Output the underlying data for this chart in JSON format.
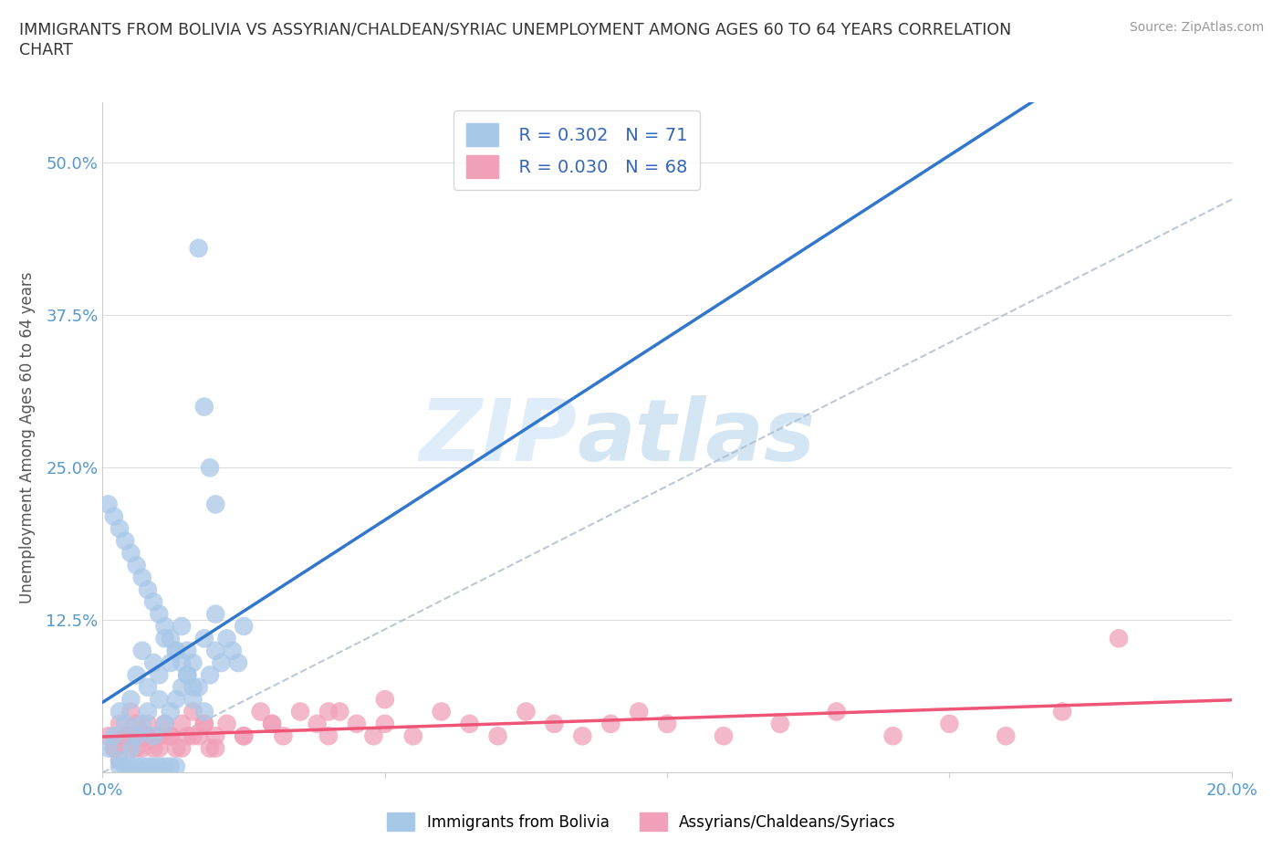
{
  "title": "IMMIGRANTS FROM BOLIVIA VS ASSYRIAN/CHALDEAN/SYRIAC UNEMPLOYMENT AMONG AGES 60 TO 64 YEARS CORRELATION\nCHART",
  "source": "Source: ZipAtlas.com",
  "ylabel": "Unemployment Among Ages 60 to 64 years",
  "xlim": [
    0.0,
    0.2
  ],
  "ylim": [
    0.0,
    0.55
  ],
  "bolivia_color": "#a8c8e8",
  "assyrian_color": "#f0a0b8",
  "bolivia_R": 0.302,
  "bolivia_N": 71,
  "assyrian_R": 0.03,
  "assyrian_N": 68,
  "watermark_zip": "ZIP",
  "watermark_atlas": "atlas",
  "legend_label_1": "Immigrants from Bolivia",
  "legend_label_2": "Assyrians/Chaldeans/Syriacs",
  "bolivia_scatter_x": [
    0.001,
    0.002,
    0.003,
    0.003,
    0.004,
    0.005,
    0.005,
    0.006,
    0.006,
    0.007,
    0.007,
    0.008,
    0.008,
    0.009,
    0.009,
    0.01,
    0.01,
    0.011,
    0.011,
    0.012,
    0.012,
    0.013,
    0.013,
    0.014,
    0.014,
    0.015,
    0.015,
    0.016,
    0.016,
    0.017,
    0.018,
    0.018,
    0.019,
    0.02,
    0.02,
    0.021,
    0.022,
    0.023,
    0.024,
    0.025,
    0.001,
    0.002,
    0.003,
    0.004,
    0.005,
    0.006,
    0.007,
    0.008,
    0.009,
    0.01,
    0.011,
    0.012,
    0.013,
    0.014,
    0.015,
    0.016,
    0.017,
    0.018,
    0.019,
    0.02,
    0.003,
    0.004,
    0.005,
    0.006,
    0.007,
    0.008,
    0.009,
    0.01,
    0.011,
    0.012,
    0.013
  ],
  "bolivia_scatter_y": [
    0.02,
    0.03,
    0.01,
    0.05,
    0.04,
    0.02,
    0.06,
    0.03,
    0.08,
    0.04,
    0.1,
    0.05,
    0.07,
    0.03,
    0.09,
    0.06,
    0.08,
    0.04,
    0.11,
    0.05,
    0.09,
    0.06,
    0.1,
    0.07,
    0.12,
    0.08,
    0.1,
    0.06,
    0.09,
    0.07,
    0.05,
    0.11,
    0.08,
    0.1,
    0.13,
    0.09,
    0.11,
    0.1,
    0.09,
    0.12,
    0.22,
    0.21,
    0.2,
    0.19,
    0.18,
    0.17,
    0.16,
    0.15,
    0.14,
    0.13,
    0.12,
    0.11,
    0.1,
    0.09,
    0.08,
    0.07,
    0.43,
    0.3,
    0.25,
    0.22,
    0.005,
    0.005,
    0.005,
    0.005,
    0.005,
    0.005,
    0.005,
    0.005,
    0.005,
    0.005,
    0.005
  ],
  "assyrian_scatter_x": [
    0.001,
    0.002,
    0.003,
    0.003,
    0.004,
    0.005,
    0.005,
    0.006,
    0.006,
    0.007,
    0.007,
    0.008,
    0.009,
    0.01,
    0.011,
    0.012,
    0.013,
    0.014,
    0.015,
    0.016,
    0.017,
    0.018,
    0.019,
    0.02,
    0.022,
    0.025,
    0.028,
    0.03,
    0.032,
    0.035,
    0.038,
    0.04,
    0.042,
    0.045,
    0.048,
    0.05,
    0.055,
    0.06,
    0.065,
    0.07,
    0.075,
    0.08,
    0.085,
    0.09,
    0.095,
    0.1,
    0.11,
    0.12,
    0.13,
    0.14,
    0.15,
    0.16,
    0.17,
    0.18,
    0.002,
    0.004,
    0.006,
    0.008,
    0.01,
    0.012,
    0.014,
    0.016,
    0.018,
    0.02,
    0.025,
    0.03,
    0.04,
    0.05
  ],
  "assyrian_scatter_y": [
    0.03,
    0.02,
    0.04,
    0.01,
    0.03,
    0.02,
    0.05,
    0.03,
    0.04,
    0.02,
    0.03,
    0.04,
    0.02,
    0.03,
    0.04,
    0.03,
    0.02,
    0.04,
    0.03,
    0.05,
    0.03,
    0.04,
    0.02,
    0.03,
    0.04,
    0.03,
    0.05,
    0.04,
    0.03,
    0.05,
    0.04,
    0.03,
    0.05,
    0.04,
    0.03,
    0.04,
    0.03,
    0.05,
    0.04,
    0.03,
    0.05,
    0.04,
    0.03,
    0.04,
    0.05,
    0.04,
    0.03,
    0.04,
    0.05,
    0.03,
    0.04,
    0.03,
    0.05,
    0.11,
    0.02,
    0.03,
    0.02,
    0.03,
    0.02,
    0.03,
    0.02,
    0.03,
    0.04,
    0.02,
    0.03,
    0.04,
    0.05,
    0.06
  ],
  "grid_color": "#dddddd",
  "axis_color": "#cccccc",
  "tick_color": "#5599cc",
  "line_color_blue": "#3377cc",
  "line_color_red": "#ee5577",
  "background_color": "#ffffff"
}
